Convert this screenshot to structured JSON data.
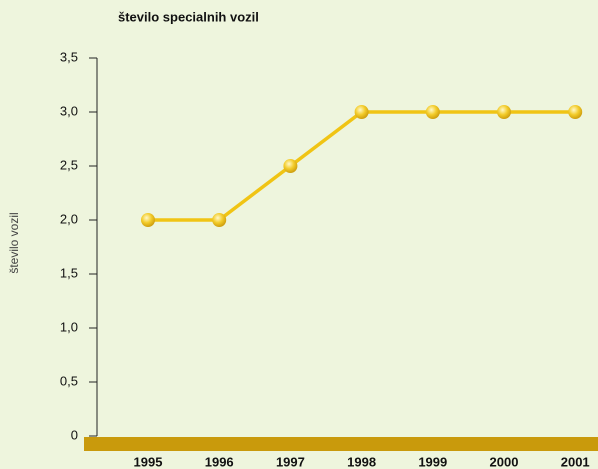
{
  "chart_data": {
    "type": "line",
    "title": "število specialnih vozil",
    "y_label": "število vozil",
    "categories": [
      "1995",
      "1996",
      "1997",
      "1998",
      "1999",
      "2000",
      "2001"
    ],
    "series": [
      {
        "name": "število vozil",
        "color": "#f0c414",
        "values": [
          2,
          2,
          2.5,
          3,
          3,
          3,
          3
        ]
      }
    ],
    "ylim": [
      0,
      3.5
    ],
    "yticks": [
      0,
      {
        "value": 0.5,
        "label": "0,5"
      },
      {
        "value": 1,
        "label": "1,0"
      },
      {
        "value": 1.5,
        "label": "1,5"
      },
      {
        "value": 2,
        "label": "2,0"
      },
      {
        "value": 2.5,
        "label": "2,5"
      },
      {
        "value": 3,
        "label": "3,0"
      },
      {
        "value": 3.5,
        "label": "3,5"
      }
    ],
    "base_color": "#c99a0c"
  }
}
